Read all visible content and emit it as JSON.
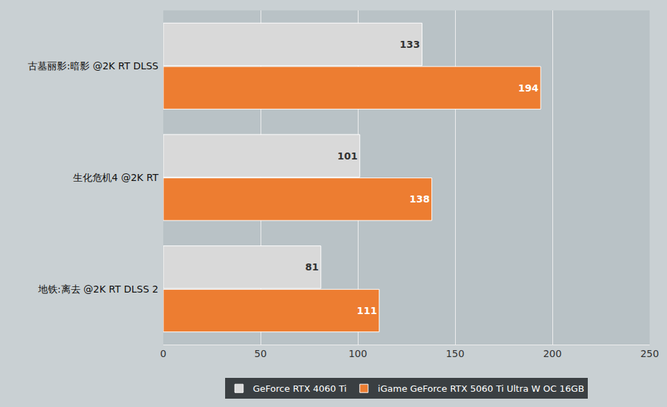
{
  "chart_data": {
    "type": "bar",
    "orientation": "horizontal",
    "categories": [
      "古墓丽影:暗影 @2K RT DLSS",
      "生化危机4 @2K RT",
      "地铁:离去 @2K RT DLSS 2"
    ],
    "series": [
      {
        "name": "GeForce RTX 4060 Ti",
        "color": "#d9d9d9",
        "values": [
          133,
          101,
          81
        ]
      },
      {
        "name": "iGame GeForce RTX 5060 Ti Ultra W OC 16GB",
        "color": "#ed7d31",
        "values": [
          194,
          138,
          111
        ]
      }
    ],
    "xlim": [
      0,
      250
    ],
    "xticks": [
      0,
      50,
      100,
      150,
      200,
      250
    ],
    "grid": true,
    "legend": "bottom",
    "data_labels": true
  }
}
